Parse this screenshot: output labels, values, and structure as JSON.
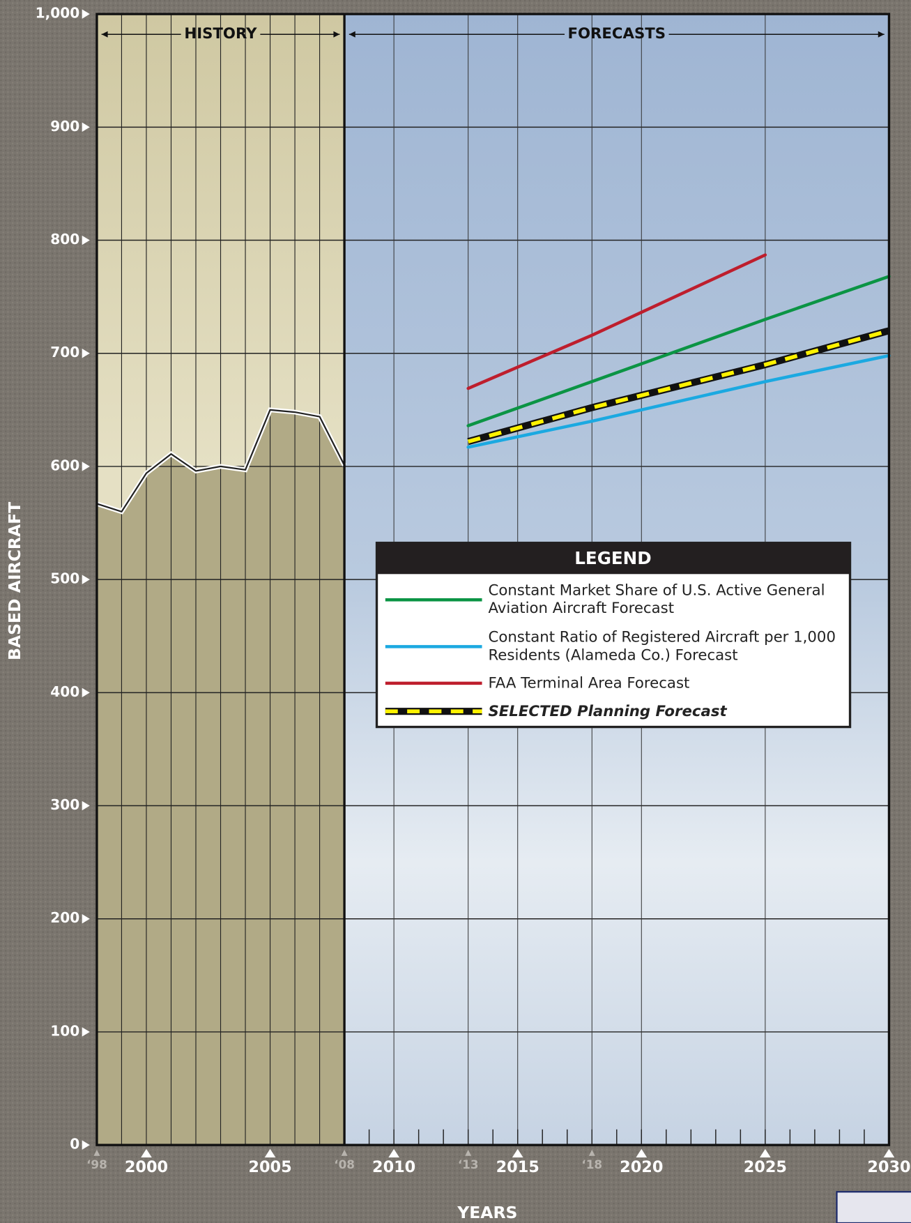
{
  "chart_data": {
    "type": "line",
    "y_label": "BASED AIRCRAFT",
    "x_label": "YEARS",
    "xlim": [
      1998,
      2030
    ],
    "ylim": [
      0,
      1000
    ],
    "yticks": [
      0,
      100,
      200,
      300,
      400,
      500,
      600,
      700,
      800,
      900,
      {
        "value": 1000,
        "label": "1,000"
      }
    ],
    "xticks": [
      {
        "value": 1998,
        "label": "‘98"
      },
      2000,
      2005,
      {
        "value": 2008,
        "label": "‘08"
      },
      2010,
      {
        "value": 2013,
        "label": "‘13"
      },
      2015,
      {
        "value": 2018,
        "label": "‘18"
      },
      2020,
      2025,
      2030
    ],
    "grid": true,
    "sections": [
      {
        "label": "HISTORY",
        "range": [
          1998,
          2008
        ]
      },
      {
        "label": "FORECASTS",
        "range": [
          2008,
          2030
        ]
      }
    ],
    "history": {
      "x": [
        1998,
        1999,
        2000,
        2001,
        2002,
        2003,
        2004,
        2005,
        2006,
        2007,
        2008
      ],
      "values": [
        567,
        560,
        594,
        611,
        596,
        600,
        597,
        650,
        648,
        644,
        601
      ],
      "color": "#222222"
    },
    "legend_title": "LEGEND",
    "series": [
      {
        "name": "Constant Market Share of U.S. Active General Aviation Aircraft Forecast",
        "color": "#0b9444",
        "x": [
          2013,
          2018,
          2025,
          2030
        ],
        "values": [
          636,
          675,
          730,
          768
        ]
      },
      {
        "name": "Constant Ratio of Registered Aircraft per 1,000 Residents (Alameda Co.) Forecast",
        "color": "#1ba9e1",
        "x": [
          2013,
          2018,
          2025,
          2030
        ],
        "values": [
          617,
          640,
          675,
          698
        ]
      },
      {
        "name": "FAA Terminal Area Forecast",
        "color": "#be1e2d",
        "x": [
          2013,
          2018,
          2025,
          2030
        ],
        "values": [
          669,
          716,
          787,
          null
        ]
      },
      {
        "name": "SELECTED Planning Forecast",
        "color": "#fff200",
        "style": "dashed",
        "x": [
          2013,
          2018,
          2025,
          2030
        ],
        "values": [
          622,
          652,
          690,
          720
        ]
      }
    ]
  }
}
